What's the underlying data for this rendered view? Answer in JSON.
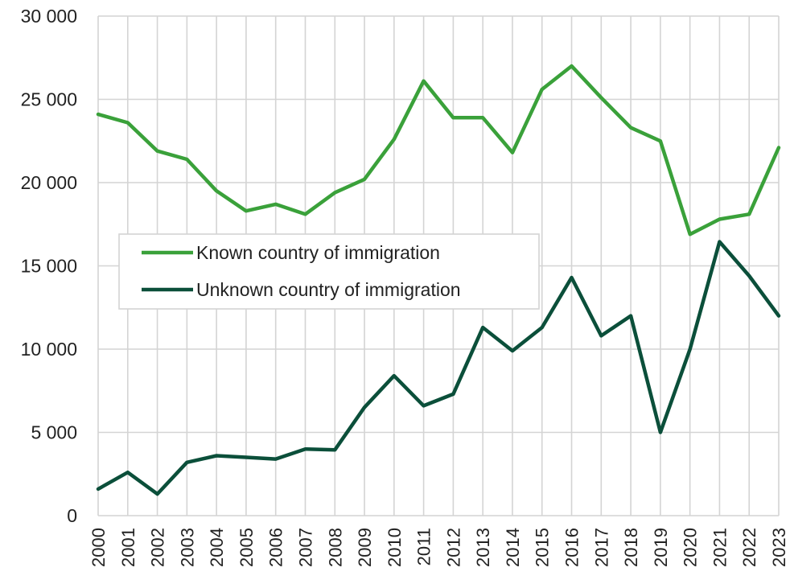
{
  "chart_data": {
    "type": "line",
    "title": "",
    "xlabel": "",
    "ylabel": "",
    "categories": [
      "2000",
      "2001",
      "2002",
      "2003",
      "2004",
      "2005",
      "2006",
      "2007",
      "2008",
      "2009",
      "2010",
      "2011",
      "2012",
      "2013",
      "2014",
      "2015",
      "2016",
      "2017",
      "2018",
      "2019",
      "2020",
      "2021",
      "2022",
      "2023"
    ],
    "ylim": [
      0,
      30000
    ],
    "yticks": [
      0,
      5000,
      10000,
      15000,
      20000,
      25000,
      30000
    ],
    "ytick_labels": [
      "0",
      "5 000",
      "10 000",
      "15 000",
      "20 000",
      "25 000",
      "30 000"
    ],
    "grid": true,
    "legend_position": "center-left",
    "series": [
      {
        "name": "Known country of immigration",
        "color": "#3aa13a",
        "values": [
          24100,
          23600,
          21900,
          21400,
          19500,
          18300,
          18700,
          18100,
          19400,
          20200,
          22600,
          26100,
          23900,
          23900,
          21800,
          25600,
          27000,
          25100,
          23300,
          22500,
          16900,
          17800,
          18100,
          22100
        ]
      },
      {
        "name": "Unknown country of immigration",
        "color": "#0b4f3a",
        "values": [
          1600,
          2600,
          1300,
          3200,
          3600,
          3500,
          3400,
          4000,
          3950,
          6500,
          8400,
          6600,
          7300,
          11300,
          9900,
          11300,
          14300,
          10800,
          12000,
          5000,
          10000,
          16450,
          14400,
          12000
        ]
      }
    ]
  }
}
